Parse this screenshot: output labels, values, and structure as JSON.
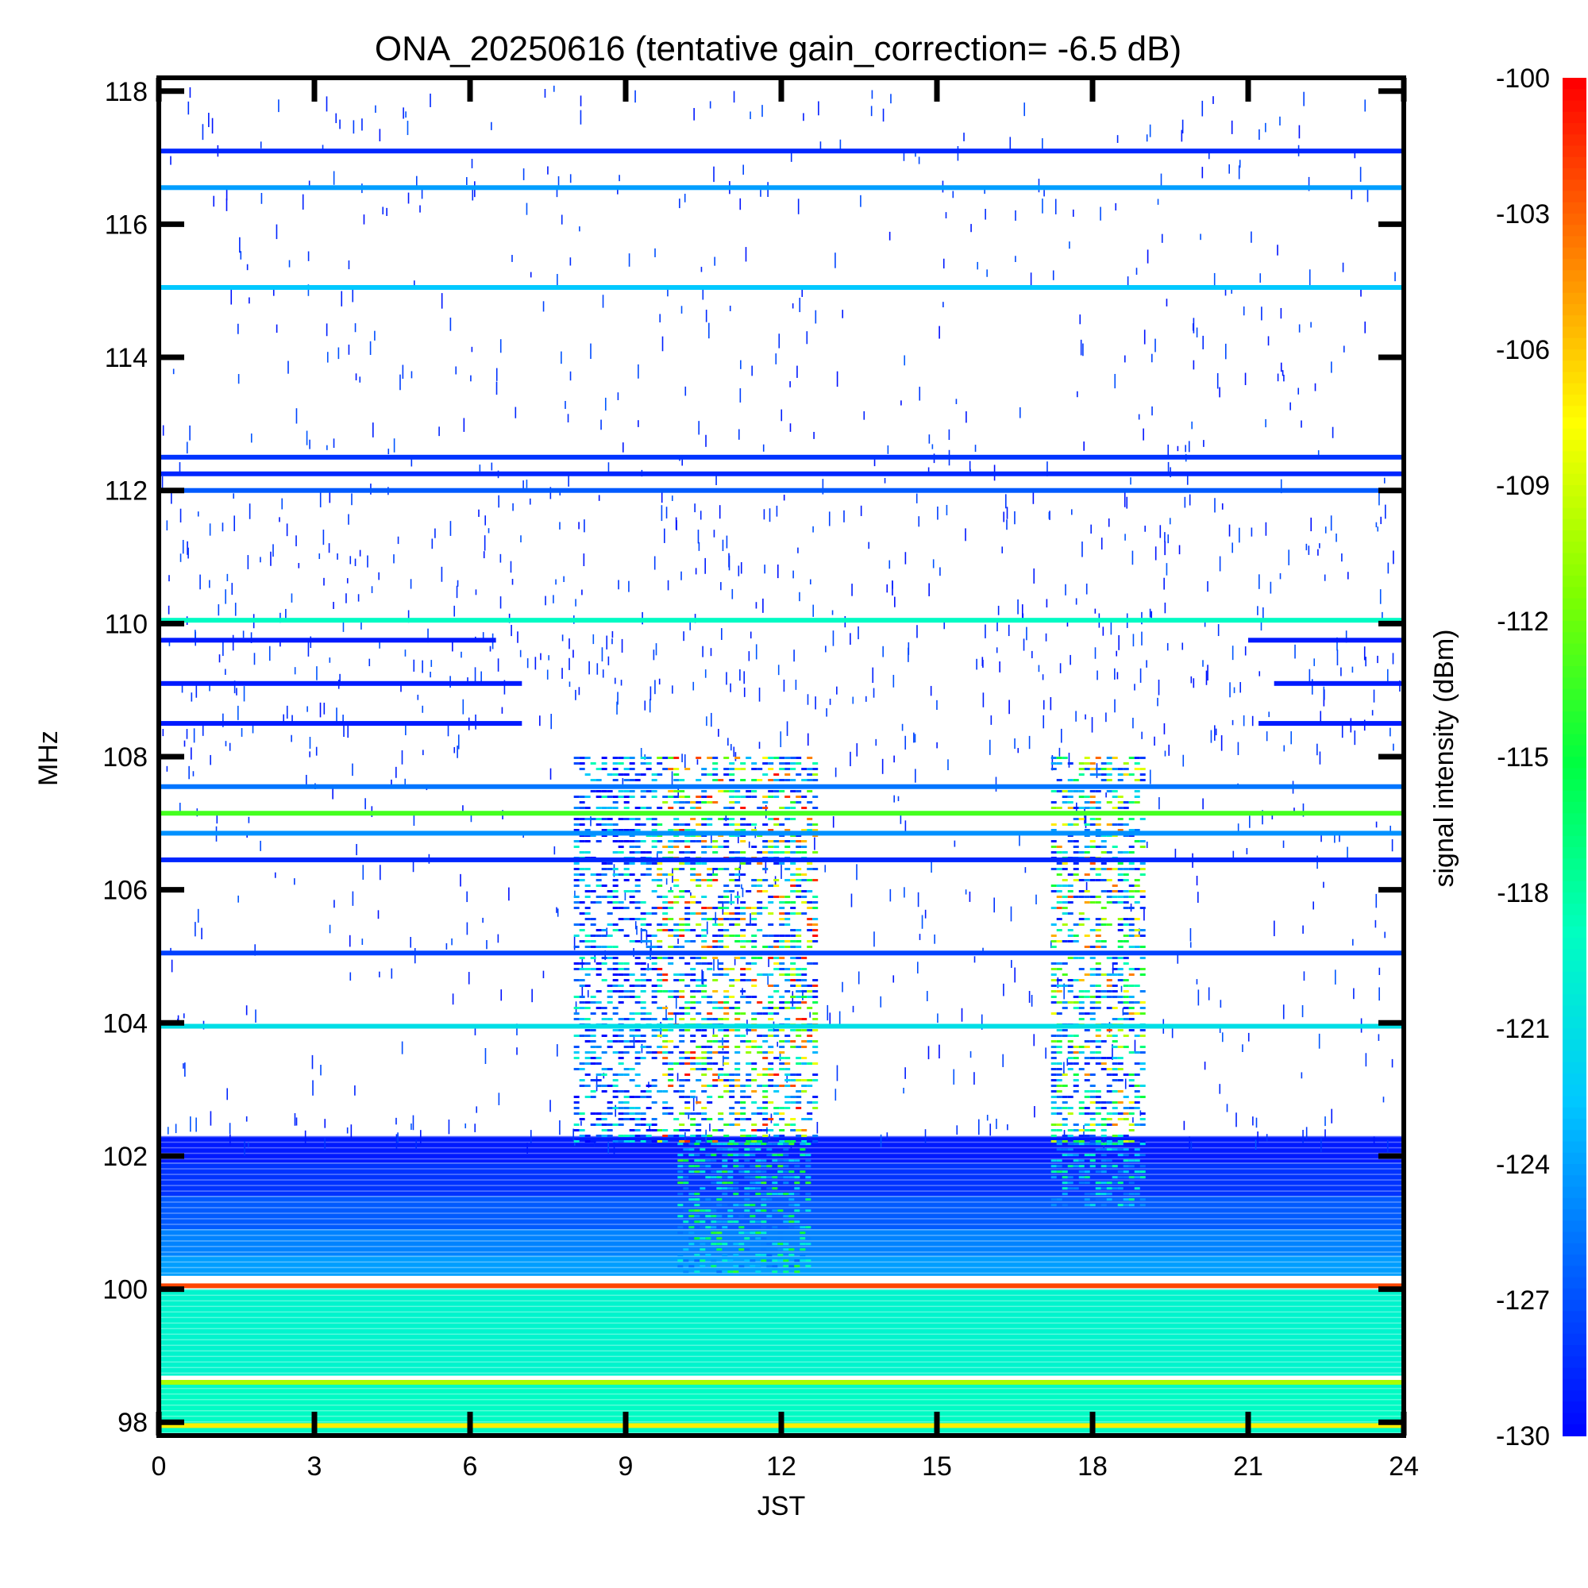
{
  "chart_data": {
    "type": "heatmap",
    "title": "ONA_20250616 (tentative gain_correction= -6.5 dB)",
    "xlabel": "JST",
    "ylabel": "MHz",
    "colorbar_label": "signal intensity (dBm)",
    "xlim": [
      0,
      24
    ],
    "ylim": [
      97.8,
      118.2
    ],
    "x_ticks": [
      0,
      3,
      6,
      9,
      12,
      15,
      18,
      21,
      24
    ],
    "y_ticks": [
      98,
      100,
      102,
      104,
      106,
      108,
      110,
      112,
      114,
      116,
      118
    ],
    "colorbar_range": [
      -130,
      -100
    ],
    "colorbar_ticks": [
      -100,
      -103,
      -106,
      -109,
      -112,
      -115,
      -118,
      -121,
      -124,
      -127,
      -130
    ],
    "colormap": [
      "#0000ff",
      "#0060ff",
      "#00c8ff",
      "#00ffc0",
      "#00ff40",
      "#80ff00",
      "#ffff00",
      "#ff8000",
      "#ff0000"
    ],
    "persistent_lines": [
      {
        "freq": 117.1,
        "dbm": -128.5,
        "t_start": 0,
        "t_end": 24
      },
      {
        "freq": 116.55,
        "dbm": -124,
        "t_start": 0,
        "t_end": 24
      },
      {
        "freq": 115.05,
        "dbm": -122.5,
        "t_start": 0,
        "t_end": 24
      },
      {
        "freq": 112.5,
        "dbm": -128,
        "t_start": 0,
        "t_end": 24
      },
      {
        "freq": 112.25,
        "dbm": -128.5,
        "t_start": 0,
        "t_end": 24
      },
      {
        "freq": 112.0,
        "dbm": -126.5,
        "t_start": 0,
        "t_end": 24
      },
      {
        "freq": 110.05,
        "dbm": -119,
        "t_start": 0,
        "t_end": 24
      },
      {
        "freq": 109.75,
        "dbm": -129,
        "t_start": 0,
        "t_end": 6.5
      },
      {
        "freq": 109.75,
        "dbm": -129,
        "t_start": 21,
        "t_end": 24
      },
      {
        "freq": 109.1,
        "dbm": -129,
        "t_start": 0,
        "t_end": 7
      },
      {
        "freq": 109.1,
        "dbm": -129,
        "t_start": 21.5,
        "t_end": 24
      },
      {
        "freq": 108.5,
        "dbm": -129,
        "t_start": 0,
        "t_end": 7
      },
      {
        "freq": 108.5,
        "dbm": -129,
        "t_start": 21.2,
        "t_end": 24
      },
      {
        "freq": 107.55,
        "dbm": -125.5,
        "t_start": 0,
        "t_end": 24
      },
      {
        "freq": 107.15,
        "dbm": -113,
        "t_start": 0,
        "t_end": 24
      },
      {
        "freq": 106.85,
        "dbm": -124.5,
        "t_start": 0,
        "t_end": 24
      },
      {
        "freq": 106.45,
        "dbm": -128.5,
        "t_start": 0,
        "t_end": 24
      },
      {
        "freq": 105.05,
        "dbm": -127.5,
        "t_start": 0,
        "t_end": 24
      },
      {
        "freq": 103.95,
        "dbm": -121,
        "t_start": 0,
        "t_end": 24
      },
      {
        "freq": 100.05,
        "dbm": -102,
        "t_start": 0,
        "t_end": 24
      },
      {
        "freq": 98.6,
        "dbm": -110,
        "t_start": 0,
        "t_end": 24
      },
      {
        "freq": 97.95,
        "dbm": -107,
        "t_start": 0,
        "t_end": 24
      }
    ],
    "background_bands": [
      {
        "f_start": 101.9,
        "f_end": 102.3,
        "dbm": -129
      },
      {
        "f_start": 101.4,
        "f_end": 101.9,
        "dbm": -128
      },
      {
        "f_start": 100.9,
        "f_end": 101.4,
        "dbm": -126.5
      },
      {
        "f_start": 100.5,
        "f_end": 100.9,
        "dbm": -125
      },
      {
        "f_start": 100.2,
        "f_end": 100.5,
        "dbm": -124
      },
      {
        "f_start": 98.7,
        "f_end": 100.0,
        "dbm": -119.5
      },
      {
        "f_start": 97.8,
        "f_end": 98.6,
        "dbm": -119
      }
    ],
    "activity_regions": [
      {
        "t_start": 9.6,
        "t_end": 12.6,
        "f_start": 102.2,
        "f_end": 108.0,
        "dbm_min": -129,
        "dbm_max": -100
      },
      {
        "t_start": 8.0,
        "t_end": 9.6,
        "f_start": 102.2,
        "f_end": 108.0,
        "dbm_min": -130,
        "dbm_max": -118
      },
      {
        "t_start": 17.2,
        "t_end": 19.0,
        "f_start": 102.2,
        "f_end": 108.0,
        "dbm_min": -129,
        "dbm_max": -102
      },
      {
        "t_start": 10.0,
        "t_end": 12.5,
        "f_start": 100.2,
        "f_end": 102.2,
        "dbm_min": -126,
        "dbm_max": -113
      },
      {
        "t_start": 17.2,
        "t_end": 19.0,
        "f_start": 101.2,
        "f_end": 102.2,
        "dbm_min": -126,
        "dbm_max": -116
      }
    ]
  }
}
